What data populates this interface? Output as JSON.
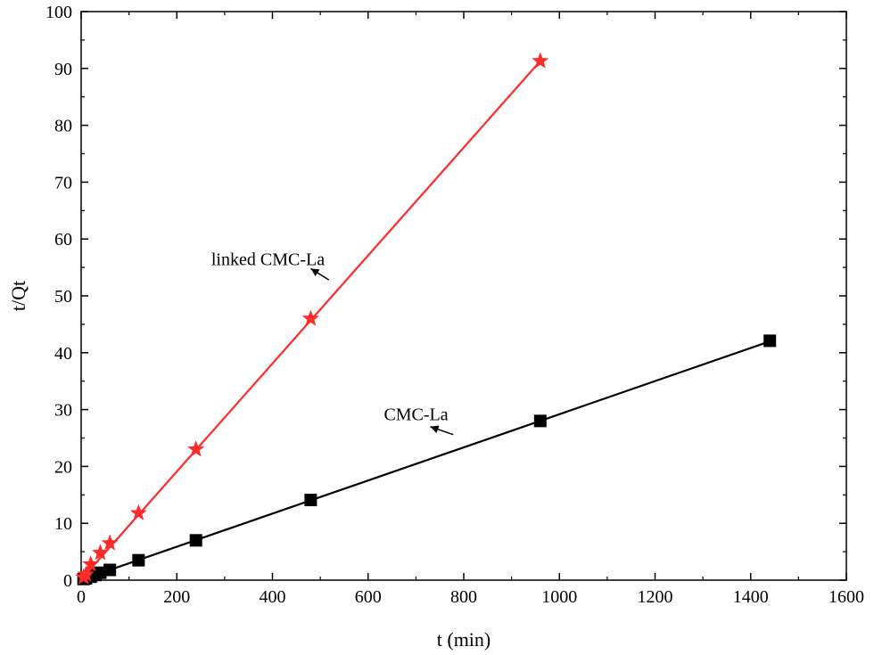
{
  "chart_data": {
    "type": "scatter",
    "xlabel": "t (min)",
    "ylabel": "t/Qt",
    "xlim": [
      0,
      1600
    ],
    "ylim": [
      0,
      100
    ],
    "x_ticks": [
      "0",
      "200",
      "400",
      "600",
      "800",
      "1000",
      "1200",
      "1400",
      "1600"
    ],
    "y_ticks": [
      "0",
      "10",
      "20",
      "30",
      "40",
      "50",
      "60",
      "70",
      "80",
      "90",
      "100"
    ],
    "grid": false,
    "series": [
      {
        "name": "CMC-La",
        "color": "#000000",
        "marker": "square",
        "x": [
          5,
          10,
          20,
          30,
          40,
          60,
          120,
          240,
          480,
          960,
          1440
        ],
        "y": [
          0.2,
          0.3,
          0.6,
          0.9,
          1.3,
          1.8,
          3.5,
          7.0,
          14.1,
          28.0,
          42.1
        ],
        "fit_line": [
          [
            0,
            0.05
          ],
          [
            1440,
            42.0
          ]
        ]
      },
      {
        "name": "linked CMC-La",
        "color": "#ff2a2a",
        "marker": "star",
        "x": [
          5,
          10,
          20,
          40,
          60,
          120,
          240,
          480,
          960
        ],
        "y": [
          0.5,
          1.0,
          2.8,
          4.8,
          6.5,
          11.8,
          23.0,
          46.0,
          91.3
        ],
        "fit_line": [
          [
            0,
            0.1
          ],
          [
            960,
            91.3
          ]
        ]
      }
    ],
    "annotations": [
      {
        "text": "linked CMC-La",
        "series": "linked CMC-La"
      },
      {
        "text": "CMC-La",
        "series": "CMC-La"
      }
    ]
  }
}
